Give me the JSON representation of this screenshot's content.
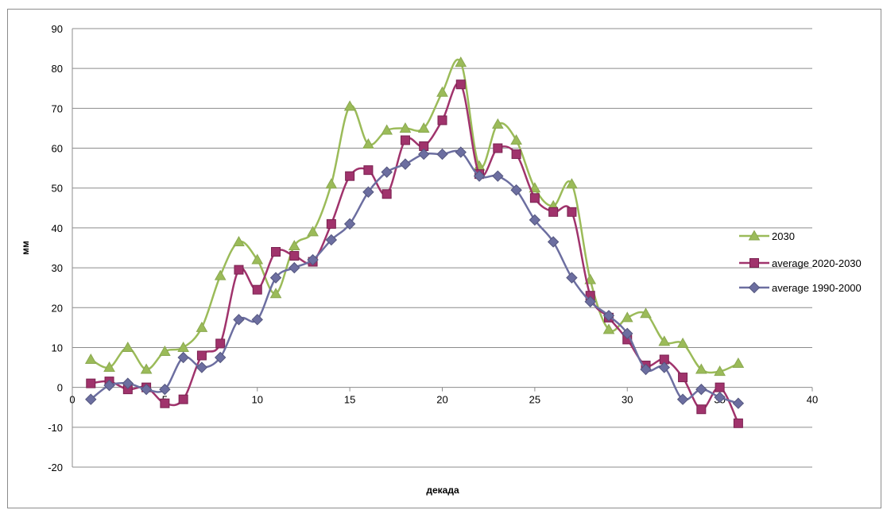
{
  "chart_data": {
    "type": "line",
    "title": "",
    "xlabel": "декада",
    "ylabel": "мм",
    "xlim": [
      0,
      40
    ],
    "ylim": [
      -20,
      90
    ],
    "xticks": [
      0,
      5,
      10,
      15,
      20,
      25,
      30,
      35,
      40
    ],
    "yticks": [
      -20,
      -10,
      0,
      10,
      20,
      30,
      40,
      50,
      60,
      70,
      80,
      90
    ],
    "grid": true,
    "legend_position": "right",
    "x": [
      1,
      2,
      3,
      4,
      5,
      6,
      7,
      8,
      9,
      10,
      11,
      12,
      13,
      14,
      15,
      16,
      17,
      18,
      19,
      20,
      21,
      22,
      23,
      24,
      25,
      26,
      27,
      28,
      29,
      30,
      31,
      32,
      33,
      34,
      35,
      36
    ],
    "series": [
      {
        "name": "2030",
        "color": "#9bbb59",
        "marker": "triangle",
        "values": [
          7,
          5,
          10,
          4.5,
          9,
          10,
          15,
          28,
          36.5,
          32,
          23.5,
          35.5,
          39,
          51,
          70.5,
          61,
          64.5,
          65,
          65,
          74,
          81.5,
          55.5,
          66,
          62,
          50,
          45.5,
          51,
          27,
          14.5,
          17.5,
          18.5,
          11.5,
          11,
          4.5,
          4,
          6
        ]
      },
      {
        "name": "average 2020-2030",
        "color": "#a0336c",
        "marker": "square",
        "values": [
          1,
          1.5,
          -0.5,
          0,
          -4,
          -3,
          8,
          11,
          29.5,
          24.5,
          34,
          33,
          31.5,
          41,
          53,
          54.5,
          48.5,
          62,
          60.5,
          67,
          76,
          53.5,
          60,
          58.5,
          47.5,
          44,
          44,
          23,
          17.5,
          12,
          5.5,
          7,
          2.5,
          -5.5,
          0,
          -9
        ]
      },
      {
        "name": "average 1990-2000",
        "color": "#6c6ea0",
        "marker": "diamond",
        "values": [
          -3,
          0.5,
          1,
          -0.5,
          -0.5,
          7.5,
          5,
          7.5,
          17,
          17,
          27.5,
          30,
          32,
          37,
          41,
          49,
          54,
          56,
          58.5,
          58.5,
          59,
          53,
          53,
          49.5,
          42,
          36.5,
          27.5,
          21.5,
          18,
          13.5,
          4.5,
          5,
          -3,
          -0.5,
          -2.5,
          -4
        ]
      }
    ]
  }
}
